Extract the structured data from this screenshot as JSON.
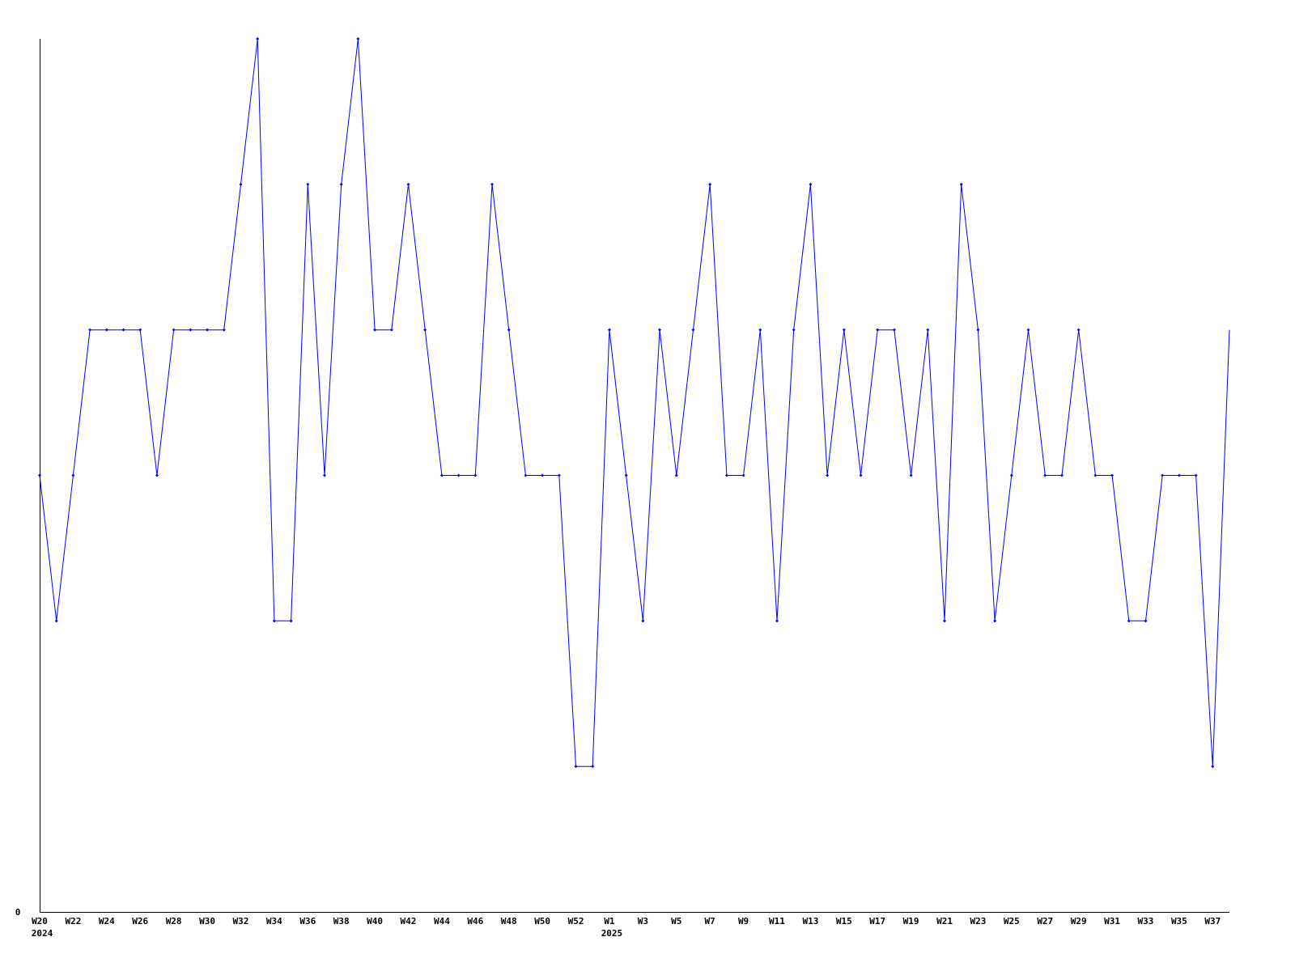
{
  "chart_data": {
    "type": "line",
    "title": "",
    "xlabel": "",
    "ylabel": "",
    "ylim": [
      0,
      6
    ],
    "grid": false,
    "legend": "none",
    "y_tick_labels": [
      "0"
    ],
    "line_color": "#0000ff",
    "axis_color": "#000000",
    "x": [
      "2024-W20",
      "2024-W21",
      "2024-W22",
      "2024-W23",
      "2024-W24",
      "2024-W25",
      "2024-W26",
      "2024-W27",
      "2024-W28",
      "2024-W29",
      "2024-W30",
      "2024-W31",
      "2024-W32",
      "2024-W33",
      "2024-W34",
      "2024-W35",
      "2024-W36",
      "2024-W37",
      "2024-W38",
      "2024-W39",
      "2024-W40",
      "2024-W41",
      "2024-W42",
      "2024-W43",
      "2024-W44",
      "2024-W45",
      "2024-W46",
      "2024-W47",
      "2024-W48",
      "2024-W49",
      "2024-W50",
      "2024-W51",
      "2024-W52",
      "2024-W53",
      "2025-W1",
      "2025-W2",
      "2025-W3",
      "2025-W4",
      "2025-W5",
      "2025-W6",
      "2025-W7",
      "2025-W8",
      "2025-W9",
      "2025-W10",
      "2025-W11",
      "2025-W12",
      "2025-W13",
      "2025-W14",
      "2025-W15",
      "2025-W16",
      "2025-W17",
      "2025-W18",
      "2025-W19",
      "2025-W20",
      "2025-W21",
      "2025-W22",
      "2025-W23",
      "2025-W24",
      "2025-W25",
      "2025-W26",
      "2025-W27",
      "2025-W28",
      "2025-W29",
      "2025-W30",
      "2025-W31",
      "2025-W32",
      "2025-W33",
      "2025-W34",
      "2025-W35",
      "2025-W36",
      "2025-W37",
      "2025-W38"
    ],
    "values": [
      3,
      2,
      3,
      4,
      4,
      4,
      4,
      3,
      4,
      4,
      4,
      4,
      5,
      6,
      2,
      2,
      5,
      3,
      5,
      6,
      4,
      4,
      5,
      4,
      3,
      3,
      3,
      5,
      4,
      3,
      3,
      3,
      1,
      1,
      4,
      3,
      2,
      4,
      3,
      4,
      5,
      3,
      3,
      4,
      2,
      4,
      5,
      3,
      4,
      3,
      4,
      4,
      3,
      4,
      2,
      5,
      4,
      2,
      3,
      4,
      3,
      3,
      4,
      3,
      3,
      2,
      2,
      3,
      3,
      3,
      1,
      4
    ],
    "x_tick_labels": [
      {
        "index": 0,
        "label": "W20",
        "year": "2024"
      },
      {
        "index": 2,
        "label": "W22"
      },
      {
        "index": 4,
        "label": "W24"
      },
      {
        "index": 6,
        "label": "W26"
      },
      {
        "index": 8,
        "label": "W28"
      },
      {
        "index": 10,
        "label": "W30"
      },
      {
        "index": 12,
        "label": "W32"
      },
      {
        "index": 14,
        "label": "W34"
      },
      {
        "index": 16,
        "label": "W36"
      },
      {
        "index": 18,
        "label": "W38"
      },
      {
        "index": 20,
        "label": "W40"
      },
      {
        "index": 22,
        "label": "W42"
      },
      {
        "index": 24,
        "label": "W44"
      },
      {
        "index": 26,
        "label": "W46"
      },
      {
        "index": 28,
        "label": "W48"
      },
      {
        "index": 30,
        "label": "W50"
      },
      {
        "index": 32,
        "label": "W52"
      },
      {
        "index": 34,
        "label": "W1",
        "year": "2025"
      },
      {
        "index": 36,
        "label": "W3"
      },
      {
        "index": 38,
        "label": "W5"
      },
      {
        "index": 40,
        "label": "W7"
      },
      {
        "index": 42,
        "label": "W9"
      },
      {
        "index": 44,
        "label": "W11"
      },
      {
        "index": 46,
        "label": "W13"
      },
      {
        "index": 48,
        "label": "W15"
      },
      {
        "index": 50,
        "label": "W17"
      },
      {
        "index": 52,
        "label": "W19"
      },
      {
        "index": 54,
        "label": "W21"
      },
      {
        "index": 56,
        "label": "W23"
      },
      {
        "index": 58,
        "label": "W25"
      },
      {
        "index": 60,
        "label": "W27"
      },
      {
        "index": 62,
        "label": "W29"
      },
      {
        "index": 64,
        "label": "W31"
      },
      {
        "index": 66,
        "label": "W33"
      },
      {
        "index": 68,
        "label": "W35"
      },
      {
        "index": 70,
        "label": "W37"
      }
    ]
  }
}
